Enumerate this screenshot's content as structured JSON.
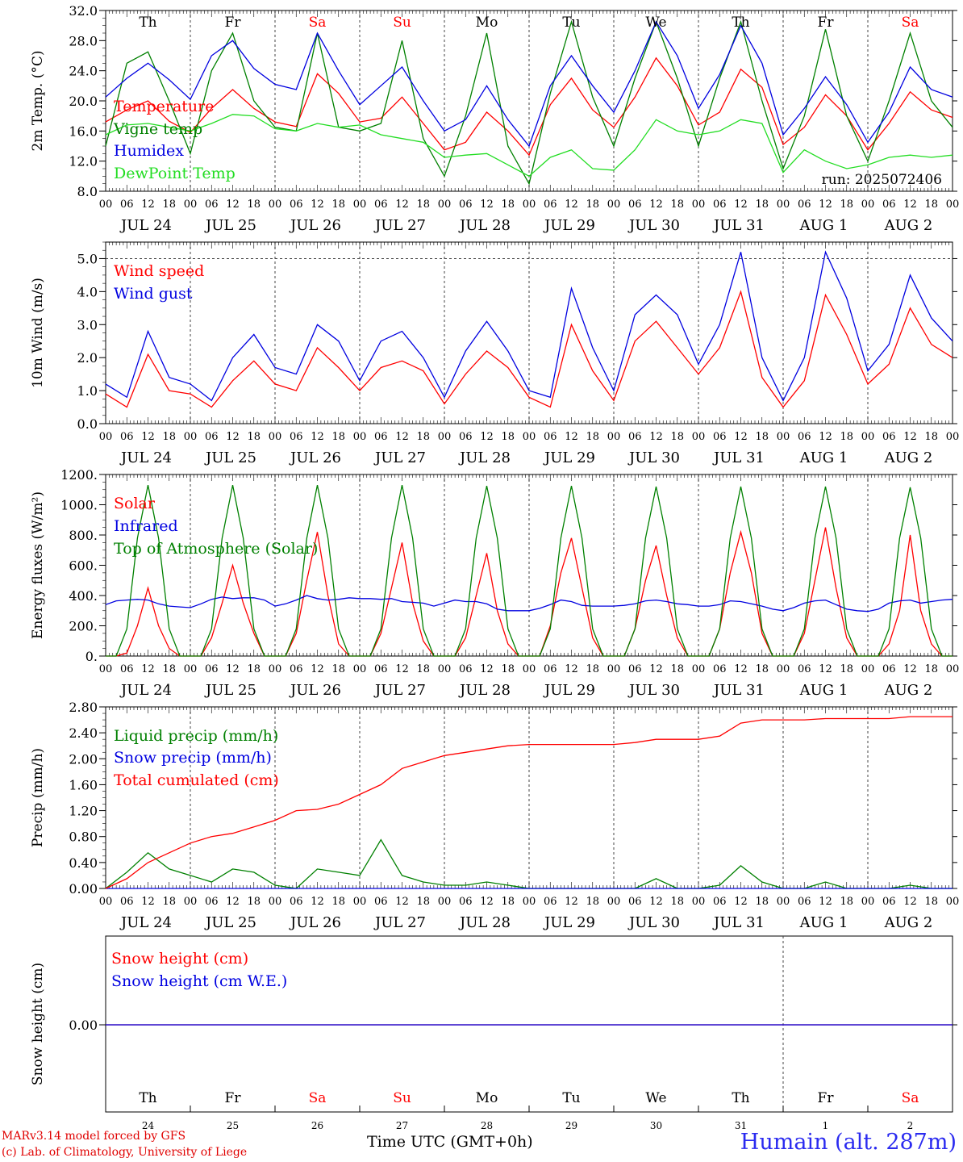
{
  "chart_data": [
    {
      "type": "line",
      "ylabel": "2m Temp. (°C)",
      "ylim": [
        8,
        32
      ],
      "yticks": [
        "8.0",
        "12.0",
        "16.0",
        "20.0",
        "24.0",
        "28.0",
        "32.0"
      ],
      "ytick_values": [
        8,
        12,
        16,
        20,
        24,
        28,
        32
      ],
      "x_hours": [
        0,
        6,
        12,
        18,
        24,
        30,
        36,
        42,
        48,
        54,
        60,
        66,
        72,
        78,
        84,
        90,
        96,
        102,
        108,
        114,
        120,
        126,
        132,
        138,
        144,
        150,
        156,
        162,
        168,
        174,
        180,
        186,
        192,
        198,
        204,
        210,
        216,
        222,
        228,
        234,
        240
      ],
      "annotation": "run: 2025072406",
      "weekdays": [
        "Th",
        "Fr",
        "Sa",
        "Su",
        "Mo",
        "Tu",
        "We",
        "Th",
        "Fr",
        "Sa"
      ],
      "series": [
        {
          "name": "Temperature",
          "color": "#ff0000",
          "values": [
            17.2,
            18.8,
            20.0,
            17.3,
            15.8,
            19.0,
            21.5,
            19.0,
            17.2,
            16.6,
            23.6,
            21.0,
            17.2,
            17.7,
            20.5,
            17.0,
            13.5,
            14.5,
            18.5,
            16.0,
            12.8,
            19.5,
            23.0,
            18.8,
            16.5,
            20.5,
            25.7,
            22.0,
            16.8,
            18.5,
            24.2,
            21.8,
            14.2,
            16.5,
            20.8,
            18.0,
            13.5,
            17.0,
            21.2,
            18.8,
            17.8
          ]
        },
        {
          "name": "Vigne temp",
          "color": "#008000",
          "values": [
            14.0,
            25.0,
            26.5,
            20.0,
            13.0,
            24.0,
            29.0,
            20.0,
            16.5,
            16.0,
            29.0,
            16.5,
            16.0,
            17.0,
            28.0,
            15.0,
            10.0,
            18.0,
            29.0,
            14.0,
            9.0,
            21.0,
            30.5,
            20.5,
            14.0,
            23.0,
            30.5,
            23.0,
            14.0,
            23.0,
            30.5,
            20.0,
            11.0,
            18.0,
            29.5,
            18.0,
            12.0,
            20.0,
            29.0,
            20.0,
            16.5
          ]
        },
        {
          "name": "Humidex",
          "color": "#0000e0",
          "values": [
            20.5,
            23.0,
            25.0,
            22.8,
            20.2,
            26.0,
            28.0,
            24.3,
            22.2,
            21.5,
            29.0,
            24.0,
            19.5,
            22.0,
            24.5,
            20.0,
            16.0,
            17.5,
            22.0,
            17.5,
            14.0,
            22.0,
            26.0,
            22.0,
            18.5,
            24.0,
            30.5,
            26.0,
            19.0,
            23.5,
            30.0,
            25.0,
            15.5,
            19.0,
            23.2,
            19.5,
            14.5,
            18.5,
            24.5,
            21.5,
            20.5
          ]
        },
        {
          "name": "DewPoint Temp",
          "color": "#22dd22",
          "values": [
            15.5,
            16.8,
            17.0,
            16.5,
            16.0,
            17.0,
            18.2,
            18.0,
            16.3,
            16.0,
            17.0,
            16.5,
            16.8,
            15.5,
            15.0,
            14.5,
            12.5,
            12.8,
            13.0,
            11.5,
            10.0,
            12.5,
            13.5,
            11.0,
            10.8,
            13.5,
            17.5,
            16.0,
            15.5,
            16.0,
            17.5,
            17.0,
            10.5,
            13.5,
            12.0,
            11.0,
            11.5,
            12.5,
            12.8,
            12.5,
            12.8
          ]
        }
      ]
    },
    {
      "type": "line",
      "ylabel": "10m Wind (m/s)",
      "ylim": [
        0,
        5.5
      ],
      "yticks": [
        "0.0",
        "1.0",
        "2.0",
        "3.0",
        "4.0",
        "5.0"
      ],
      "ytick_values": [
        0,
        1,
        2,
        3,
        4,
        5
      ],
      "x_hours": [
        0,
        6,
        12,
        18,
        24,
        30,
        36,
        42,
        48,
        54,
        60,
        66,
        72,
        78,
        84,
        90,
        96,
        102,
        108,
        114,
        120,
        126,
        132,
        138,
        144,
        150,
        156,
        162,
        168,
        174,
        180,
        186,
        192,
        198,
        204,
        210,
        216,
        222,
        228,
        234,
        240
      ],
      "series": [
        {
          "name": "Wind speed",
          "color": "#ff0000",
          "values": [
            0.9,
            0.5,
            2.1,
            1.0,
            0.9,
            0.5,
            1.3,
            1.9,
            1.2,
            1.0,
            2.3,
            1.7,
            1.0,
            1.7,
            1.9,
            1.6,
            0.6,
            1.5,
            2.2,
            1.7,
            0.8,
            0.5,
            3.0,
            1.6,
            0.7,
            2.5,
            3.1,
            2.3,
            1.5,
            2.3,
            4.0,
            1.4,
            0.5,
            1.3,
            3.9,
            2.7,
            1.2,
            1.8,
            3.5,
            2.4,
            2.0
          ]
        },
        {
          "name": "Wind gust",
          "color": "#0000e0",
          "values": [
            1.2,
            0.8,
            2.8,
            1.4,
            1.2,
            0.7,
            2.0,
            2.7,
            1.7,
            1.5,
            3.0,
            2.5,
            1.3,
            2.5,
            2.8,
            2.0,
            0.8,
            2.2,
            3.1,
            2.2,
            1.0,
            0.8,
            4.1,
            2.3,
            1.0,
            3.3,
            3.9,
            3.3,
            1.8,
            3.0,
            5.2,
            2.0,
            0.7,
            2.0,
            5.2,
            3.8,
            1.6,
            2.4,
            4.5,
            3.2,
            2.5
          ]
        }
      ]
    },
    {
      "type": "line",
      "ylabel": "Energy fluxes (W/m²)",
      "ylim": [
        0,
        1200
      ],
      "yticks": [
        "0.",
        "200.",
        "400.",
        "600.",
        "800.",
        "1000.",
        "1200."
      ],
      "ytick_values": [
        0,
        200,
        400,
        600,
        800,
        1000,
        1200
      ],
      "x_hours": [
        0,
        3,
        6,
        9,
        12,
        15,
        18,
        21,
        24,
        27,
        30,
        33,
        36,
        39,
        42,
        45,
        48,
        51,
        54,
        57,
        60,
        63,
        66,
        69,
        72,
        75,
        78,
        81,
        84,
        87,
        90,
        93,
        96,
        99,
        102,
        105,
        108,
        111,
        114,
        117,
        120,
        123,
        126,
        129,
        132,
        135,
        138,
        141,
        144,
        147,
        150,
        153,
        156,
        159,
        162,
        165,
        168,
        171,
        174,
        177,
        180,
        183,
        186,
        189,
        192,
        195,
        198,
        201,
        204,
        207,
        210,
        213,
        216,
        219,
        222,
        225,
        228,
        231,
        234,
        237,
        240
      ],
      "series": [
        {
          "name": "Solar",
          "color": "#ff0000",
          "values": [
            0,
            0,
            20,
            200,
            450,
            200,
            50,
            0,
            0,
            0,
            120,
            350,
            600,
            350,
            150,
            0,
            0,
            0,
            150,
            500,
            820,
            400,
            80,
            0,
            0,
            0,
            150,
            450,
            750,
            350,
            100,
            0,
            0,
            0,
            120,
            400,
            680,
            300,
            80,
            0,
            0,
            0,
            200,
            550,
            780,
            450,
            120,
            0,
            0,
            0,
            180,
            500,
            730,
            400,
            120,
            0,
            0,
            0,
            180,
            550,
            820,
            550,
            150,
            0,
            0,
            0,
            150,
            500,
            850,
            450,
            120,
            0,
            0,
            0,
            80,
            300,
            800,
            300,
            80,
            0,
            0
          ]
        },
        {
          "name": "Infrared",
          "color": "#0000e0",
          "values": [
            340,
            365,
            370,
            375,
            370,
            345,
            330,
            325,
            320,
            345,
            375,
            390,
            380,
            385,
            385,
            370,
            330,
            345,
            370,
            400,
            380,
            370,
            375,
            385,
            380,
            380,
            375,
            380,
            360,
            355,
            350,
            330,
            350,
            370,
            360,
            360,
            345,
            310,
            300,
            300,
            300,
            315,
            340,
            370,
            360,
            335,
            330,
            330,
            330,
            335,
            345,
            365,
            370,
            360,
            345,
            340,
            330,
            330,
            340,
            365,
            360,
            345,
            330,
            310,
            300,
            320,
            350,
            365,
            370,
            340,
            310,
            300,
            295,
            310,
            350,
            365,
            370,
            350,
            360,
            370,
            375
          ]
        },
        {
          "name": "Top of Atmosphere (Solar)",
          "color": "#008000",
          "values": [
            0,
            0,
            180,
            780,
            1130,
            780,
            180,
            0,
            0,
            0,
            180,
            780,
            1130,
            780,
            180,
            0,
            0,
            0,
            180,
            780,
            1130,
            780,
            180,
            0,
            0,
            0,
            180,
            780,
            1130,
            780,
            180,
            0,
            0,
            0,
            180,
            780,
            1125,
            780,
            180,
            0,
            0,
            0,
            180,
            780,
            1125,
            780,
            180,
            0,
            0,
            0,
            180,
            780,
            1120,
            780,
            180,
            0,
            0,
            0,
            180,
            780,
            1120,
            780,
            180,
            0,
            0,
            0,
            180,
            780,
            1120,
            780,
            180,
            0,
            0,
            0,
            180,
            780,
            1115,
            780,
            180,
            0,
            0
          ]
        }
      ]
    },
    {
      "type": "line",
      "ylabel": "Precip (mm/h)",
      "ylim": [
        0,
        2.8
      ],
      "yticks": [
        "0.00",
        "0.40",
        "0.80",
        "1.20",
        "1.60",
        "2.00",
        "2.40",
        "2.80"
      ],
      "ytick_values": [
        0,
        0.4,
        0.8,
        1.2,
        1.6,
        2.0,
        2.4,
        2.8
      ],
      "x_hours": [
        0,
        6,
        12,
        18,
        24,
        30,
        36,
        42,
        48,
        54,
        60,
        66,
        72,
        78,
        84,
        90,
        96,
        102,
        108,
        114,
        120,
        126,
        132,
        138,
        144,
        150,
        156,
        162,
        168,
        174,
        180,
        186,
        192,
        198,
        204,
        210,
        216,
        222,
        228,
        234,
        240
      ],
      "series": [
        {
          "name": "Liquid precip (mm/h)",
          "color": "#008000",
          "values": [
            0,
            0.25,
            0.55,
            0.3,
            0.2,
            0.1,
            0.3,
            0.25,
            0.05,
            0,
            0.3,
            0.25,
            0.2,
            0.75,
            0.2,
            0.1,
            0.05,
            0.05,
            0.1,
            0.05,
            0,
            0,
            0,
            0,
            0,
            0,
            0.15,
            0,
            0,
            0.05,
            0.35,
            0.1,
            0,
            0,
            0.1,
            0,
            0,
            0,
            0.05,
            0,
            0
          ]
        },
        {
          "name": "Snow precip (mm/h)",
          "color": "#0000e0",
          "values": [
            0,
            0,
            0,
            0,
            0,
            0,
            0,
            0,
            0,
            0,
            0,
            0,
            0,
            0,
            0,
            0,
            0,
            0,
            0,
            0,
            0,
            0,
            0,
            0,
            0,
            0,
            0,
            0,
            0,
            0,
            0,
            0,
            0,
            0,
            0,
            0,
            0,
            0,
            0,
            0,
            0
          ]
        },
        {
          "name": "Total cumulated (cm)",
          "color": "#ff0000",
          "values": [
            0,
            0.15,
            0.4,
            0.55,
            0.7,
            0.8,
            0.85,
            0.95,
            1.05,
            1.2,
            1.22,
            1.3,
            1.45,
            1.6,
            1.85,
            1.95,
            2.05,
            2.1,
            2.15,
            2.2,
            2.22,
            2.22,
            2.22,
            2.22,
            2.22,
            2.25,
            2.3,
            2.3,
            2.3,
            2.35,
            2.55,
            2.6,
            2.6,
            2.6,
            2.62,
            2.62,
            2.62,
            2.62,
            2.65,
            2.65,
            2.65
          ]
        }
      ]
    },
    {
      "type": "line",
      "ylabel": "Snow height (cm)",
      "yticks": [
        "0.00"
      ],
      "ytick_values": [
        0
      ],
      "series": [
        {
          "name": "Snow height (cm)",
          "color": "#ff0000",
          "values": [
            0,
            0
          ]
        },
        {
          "name": "Snow height (cm W.E.)",
          "color": "#0000e0",
          "values": [
            0,
            0
          ]
        }
      ],
      "weekdays": [
        "Th",
        "Fr",
        "Sa",
        "Su",
        "Mo",
        "Tu",
        "We",
        "Th",
        "Fr",
        "Sa"
      ],
      "day_numbers": [
        "24",
        "25",
        "26",
        "27",
        "28",
        "29",
        "30",
        "31",
        "1",
        "2"
      ]
    }
  ],
  "x_axis": {
    "hour_labels": [
      "00",
      "06",
      "12",
      "18"
    ],
    "last_hour_label": "00",
    "dates": [
      "JUL 24",
      "JUL 25",
      "JUL 26",
      "JUL 27",
      "JUL 28",
      "JUL 29",
      "JUL 30",
      "JUL 31",
      "AUG  1",
      "AUG  2"
    ]
  },
  "weekend_color": "#ff0000",
  "footer": {
    "model_line": "MARv3.14 model forced by GFS",
    "lab_line": "(c) Lab. of Climatology, University of Liege",
    "time_label": "Time UTC (GMT+0h)",
    "station": "Humain (alt. 287m)"
  }
}
